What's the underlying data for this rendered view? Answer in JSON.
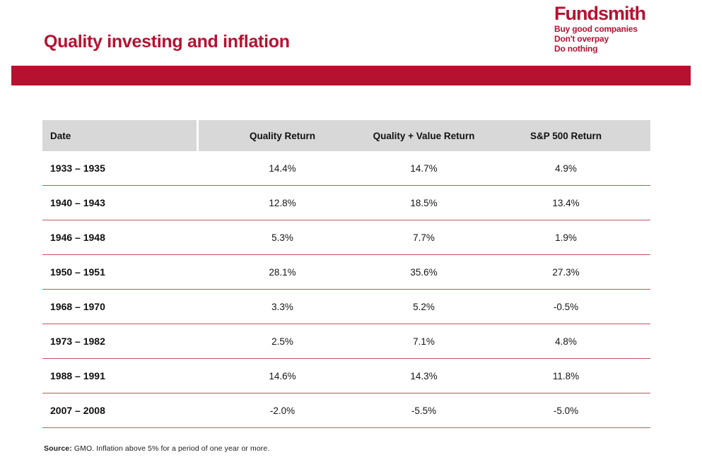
{
  "header": {
    "title": "Quality investing and inflation"
  },
  "logo": {
    "name": "Fundsmith",
    "tagline": [
      "Buy good companies",
      "Don't overpay",
      "Do nothing"
    ]
  },
  "chart_data": {
    "type": "table",
    "title": "Quality investing and inflation",
    "columns": [
      "Date",
      "Quality Return",
      "Quality + Value Return",
      "S&P 500 Return"
    ],
    "rows": [
      [
        "1933 – 1935",
        "14.4%",
        "14.7%",
        "4.9%"
      ],
      [
        "1940 – 1943",
        "12.8%",
        "18.5%",
        "13.4%"
      ],
      [
        "1946 – 1948",
        "5.3%",
        "7.7%",
        "1.9%"
      ],
      [
        "1950 – 1951",
        "28.1%",
        "35.6%",
        "27.3%"
      ],
      [
        "1968 – 1970",
        "3.3%",
        "5.2%",
        "-0.5%"
      ],
      [
        "1973 – 1982",
        "2.5%",
        "7.1%",
        "4.8%"
      ],
      [
        "1988 – 1991",
        "14.6%",
        "14.3%",
        "11.8%"
      ],
      [
        "2007 – 2008",
        "-2.0%",
        "-5.5%",
        "-5.0%"
      ]
    ]
  },
  "footer": {
    "source_label": "Source:",
    "source_text": "GMO. Inflation above 5% for a period of one year or more."
  },
  "colors": {
    "brand_red": "#B61230",
    "header_bg": "#D8D8D8",
    "row_line": "#C2565E"
  }
}
